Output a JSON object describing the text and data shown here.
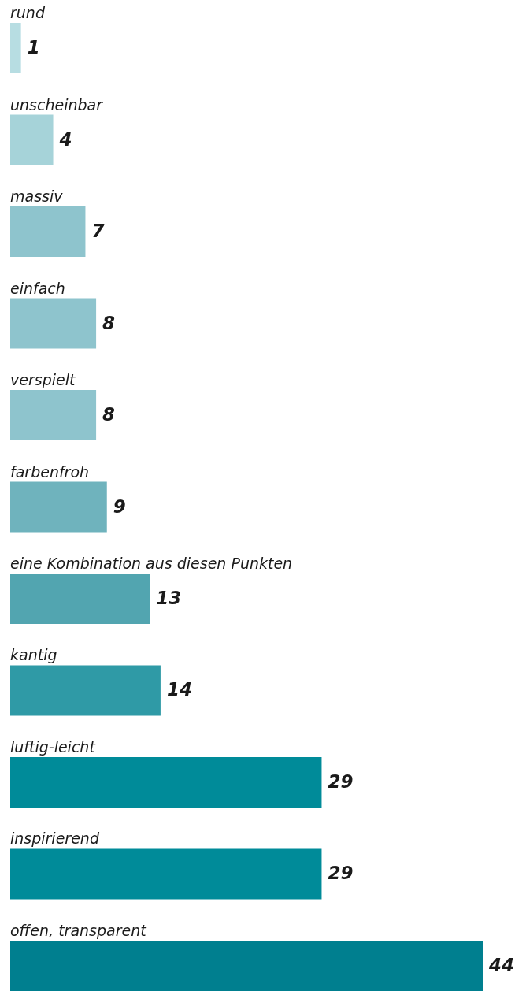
{
  "chart_data": {
    "type": "bar",
    "orientation": "horizontal",
    "data_labels": true,
    "categories": [
      "rund",
      "unscheinbar",
      "massiv",
      "einfach",
      "verspielt",
      "farbenfroh",
      "eine Kombination aus diesen Punkten",
      "kantig",
      "luftig-leicht",
      "inspirierend",
      "offen, transparent"
    ],
    "values": [
      1,
      4,
      7,
      8,
      8,
      9,
      13,
      14,
      29,
      29,
      44
    ],
    "colors": [
      "#b7dde2",
      "#a6d3d9",
      "#8ec4cd",
      "#8ec4cd",
      "#8ec4cd",
      "#6fb3bd",
      "#52a5b0",
      "#2f9aa6",
      "#008b99",
      "#008b99",
      "#007f8f"
    ]
  }
}
